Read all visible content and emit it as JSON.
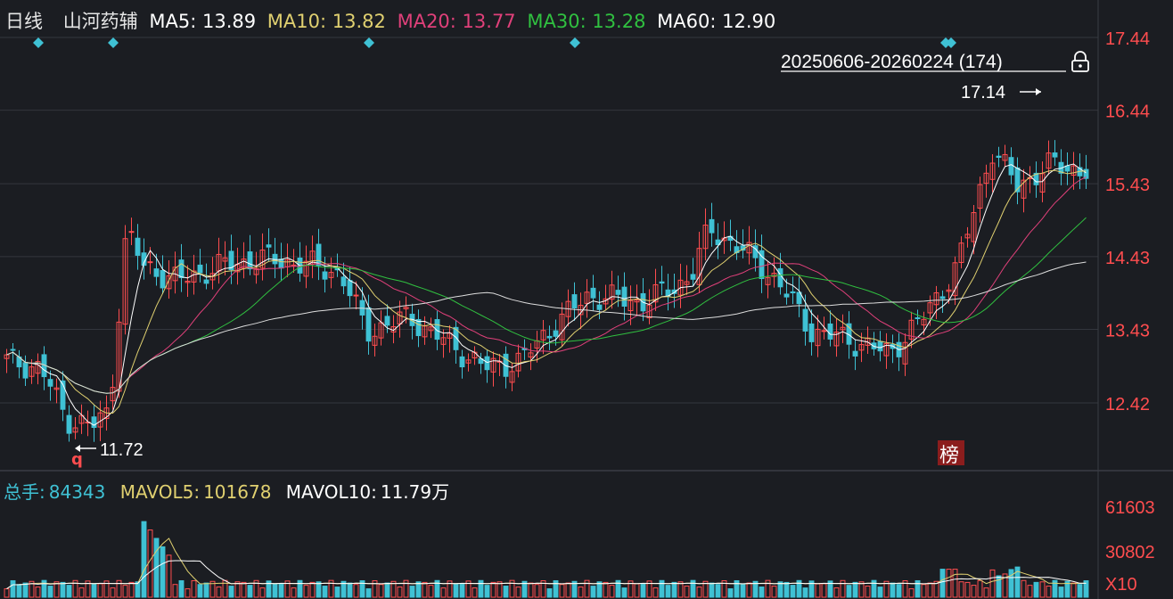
{
  "header": {
    "period": "日线",
    "stock": "山河药辅",
    "ma": [
      {
        "label": "MA5:",
        "value": "13.89",
        "color": "#ffffff"
      },
      {
        "label": "MA10:",
        "value": "13.82",
        "color": "#e0d070"
      },
      {
        "label": "MA20:",
        "value": "13.77",
        "color": "#e0407a"
      },
      {
        "label": "MA30:",
        "value": "13.28",
        "color": "#30c040"
      },
      {
        "label": "MA60:",
        "value": "12.90",
        "color": "#ffffff"
      }
    ]
  },
  "range_label": "20250606-20260224 (174)",
  "volume_header": {
    "total_label": "总手:",
    "total_value": "84343",
    "mavol5_label": "MAVOL5:",
    "mavol5_value": "101678",
    "mavol10_label": "MAVOL10:",
    "mavol10_value": "11.79万"
  },
  "lock_icon": "lock-icon",
  "bang_badge": "榜",
  "q_marker": "q",
  "colors": {
    "up": "#ff4d4f",
    "down": "#3fc1d4",
    "bg": "#1b1d22",
    "grid": "#33363d",
    "axis": "#ff4d4f"
  },
  "chart_data": [
    {
      "type": "candlestick",
      "title": "",
      "y_ticks": [
        "17.44",
        "16.44",
        "15.43",
        "14.43",
        "13.43",
        "12.42"
      ],
      "ylim": [
        11.4,
        17.8
      ],
      "n": 174,
      "annotations": {
        "high": "17.14",
        "low": "11.72"
      },
      "series_style": [
        "MA5",
        "MA10",
        "MA20",
        "MA30",
        "MA60"
      ]
    },
    {
      "type": "bar",
      "title": "",
      "y_ticks": [
        "61603",
        "30802",
        "X10"
      ],
      "ylim": [
        0,
        61603
      ]
    }
  ]
}
